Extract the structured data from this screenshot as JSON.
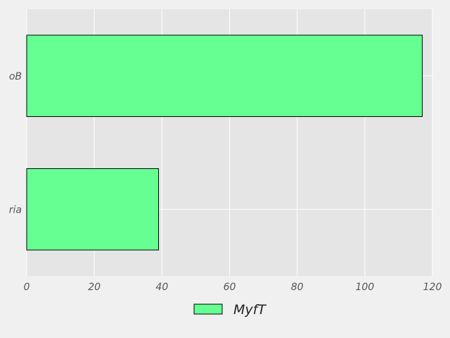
{
  "chart_data": {
    "type": "bar",
    "orientation": "horizontal",
    "categories": [
      "ria",
      "oB"
    ],
    "series": [
      {
        "name": "MyfT",
        "values": [
          39,
          117
        ]
      }
    ],
    "xlim": [
      0,
      120
    ],
    "xticks": [
      "0",
      "20",
      "40",
      "60",
      "80",
      "100",
      "120"
    ],
    "grid": true,
    "legend_position": "bottom-center",
    "colors": {
      "bar_fill": "#66ff91",
      "bar_edge": "#000000",
      "plot_background": "#e5e5e5",
      "figure_background": "#f0f0f0",
      "grid": "#ffffff"
    }
  }
}
